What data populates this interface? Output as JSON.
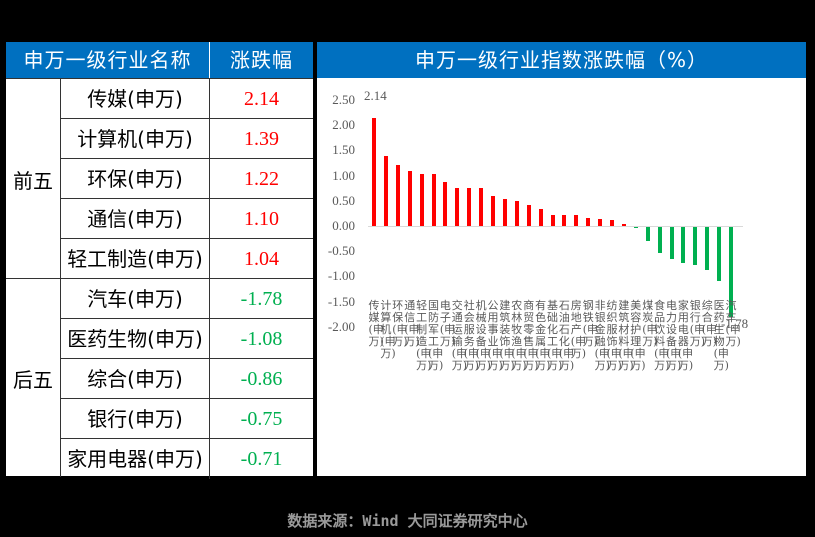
{
  "table": {
    "header": {
      "name_col": "申万一级行业名称",
      "value_col": "涨跌幅（%）"
    },
    "groups": [
      {
        "label": "前五",
        "rows": [
          {
            "name": "传媒(申万)",
            "value": "2.14"
          },
          {
            "name": "计算机(申万)",
            "value": "1.39"
          },
          {
            "name": "环保(申万)",
            "value": "1.22"
          },
          {
            "name": "通信(申万)",
            "value": "1.10"
          },
          {
            "name": "轻工制造(申万)",
            "value": "1.04"
          }
        ]
      },
      {
        "label": "后五",
        "rows": [
          {
            "name": "汽车(申万)",
            "value": "-1.78"
          },
          {
            "name": "医药生物(申万)",
            "value": "-1.08"
          },
          {
            "name": "综合(申万)",
            "value": "-0.86"
          },
          {
            "name": "银行(申万)",
            "value": "-0.75"
          },
          {
            "name": "家用电器(申万)",
            "value": "-0.71"
          }
        ]
      }
    ]
  },
  "colors": {
    "header_bg": "#0070c0",
    "positive": "#ff0000",
    "negative": "#00b050",
    "axis_text": "#595959",
    "footer_text": "#9a9a9a"
  },
  "chart_data": {
    "type": "bar",
    "title": "申万一级行业指数涨跌幅（%）",
    "xlabel": "",
    "ylabel": "",
    "ylim": [
      -2.0,
      2.5
    ],
    "yticks": [
      "2.50",
      "2.00",
      "1.50",
      "1.00",
      "0.50",
      "0.00",
      "-0.50",
      "-1.00",
      "-1.50",
      "-2.00"
    ],
    "grid": false,
    "legend": null,
    "categories": [
      "传媒(申万)",
      "计算机(申万)",
      "环保(申万)",
      "通信(申万)",
      "轻工制造(申万)",
      "国防军工(申万)",
      "电子(申万)",
      "交通运输(申万)",
      "社会服务(申万)",
      "机械设备(申万)",
      "公用事业(申万)",
      "建筑装饰(申万)",
      "农林牧渔(申万)",
      "商贸零售(申万)",
      "有色金属(申万)",
      "基础化工(申万)",
      "石油石化(申万)",
      "房地产(申万)",
      "钢铁(申万)",
      "非银金融(申万)",
      "纺织服饰(申万)",
      "建筑材料(申万)",
      "美容护理(申万)",
      "煤炭(申万)",
      "食品饮料(申万)",
      "电力设备(申万)",
      "家用电器(申万)",
      "银行(申万)",
      "综合(申万)",
      "医药生物(申万)",
      "汽车(申万)"
    ],
    "values": [
      2.14,
      1.39,
      1.22,
      1.1,
      1.04,
      1.03,
      0.87,
      0.75,
      0.75,
      0.75,
      0.6,
      0.54,
      0.5,
      0.42,
      0.34,
      0.22,
      0.22,
      0.22,
      0.16,
      0.14,
      0.12,
      0.04,
      -0.02,
      -0.28,
      -0.52,
      -0.64,
      -0.71,
      -0.75,
      -0.86,
      -1.08,
      -1.78
    ],
    "annotations": [
      {
        "index": 0,
        "text": "2.14"
      },
      {
        "index": 30,
        "text": "-1.78"
      }
    ]
  },
  "footer": {
    "source": "数据来源：Wind 大同证券研究中心"
  }
}
